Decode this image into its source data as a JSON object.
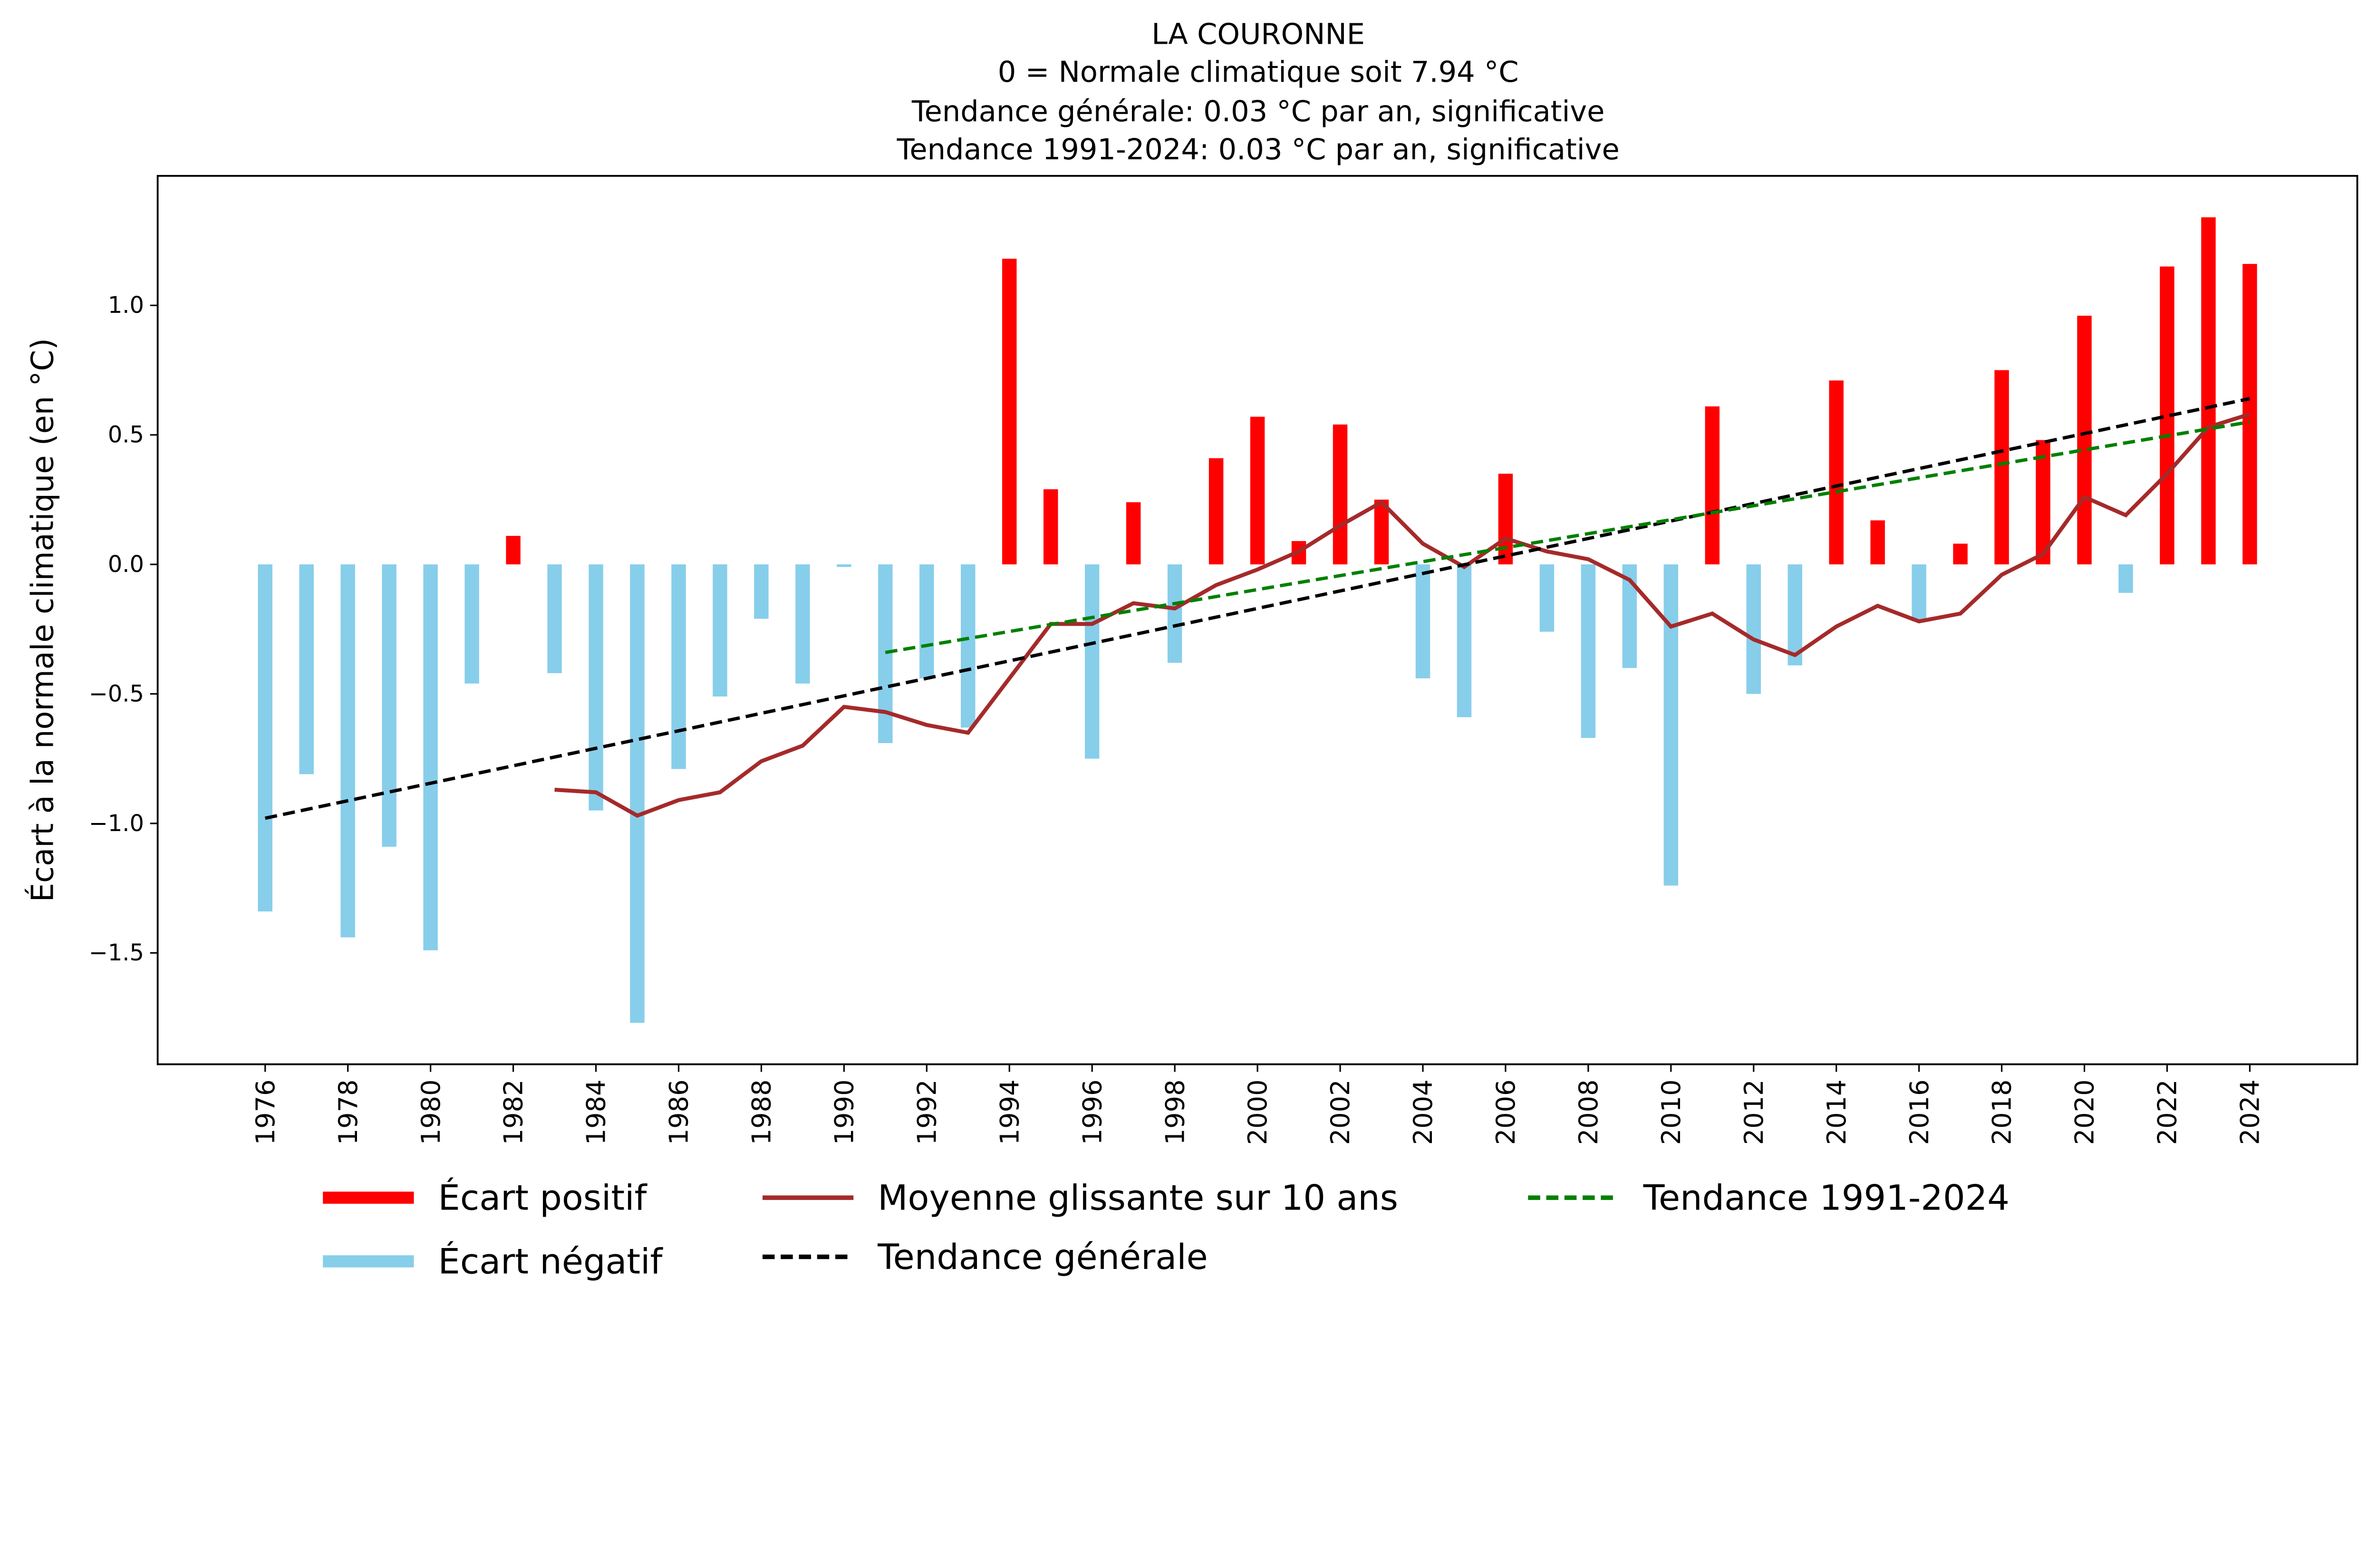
{
  "chart_data": {
    "type": "bar",
    "title_lines": [
      "LA COURONNE",
      "0 = Normale climatique soit 7.94 °C",
      "Tendance générale: 0.03 °C par an, significative",
      "Tendance 1991-2024: 0.03 °C par an, significative"
    ],
    "xlabel": "",
    "ylabel": "Écart à la normale climatique (en °C)",
    "xlim": [
      1973.4,
      2026.6
    ],
    "ylim": [
      -1.93,
      1.5
    ],
    "yticks": [
      -1.5,
      -1.0,
      -0.5,
      0.0,
      0.5,
      1.0
    ],
    "ytick_labels": [
      "−1.5",
      "−1.0",
      "−0.5",
      "0.0",
      "0.5",
      "1.0"
    ],
    "xticks": [
      1976,
      1978,
      1980,
      1982,
      1984,
      1986,
      1988,
      1990,
      1992,
      1994,
      1996,
      1998,
      2000,
      2002,
      2004,
      2006,
      2008,
      2010,
      2012,
      2014,
      2016,
      2018,
      2020,
      2022,
      2024
    ],
    "grid": false,
    "legend_placement": "bottom",
    "colors": {
      "positive": "#ff0000",
      "negative": "#87ceeb",
      "rolling": "#a52a2a",
      "trend_all": "#000000",
      "trend_recent": "#008000"
    },
    "years": [
      1976,
      1977,
      1978,
      1979,
      1980,
      1981,
      1982,
      1983,
      1984,
      1985,
      1986,
      1987,
      1988,
      1989,
      1990,
      1991,
      1992,
      1993,
      1994,
      1995,
      1996,
      1997,
      1998,
      1999,
      2000,
      2001,
      2002,
      2003,
      2004,
      2005,
      2006,
      2007,
      2008,
      2009,
      2010,
      2011,
      2012,
      2013,
      2014,
      2015,
      2016,
      2017,
      2018,
      2019,
      2020,
      2021,
      2022,
      2023,
      2024
    ],
    "anomalies": [
      -1.34,
      -0.81,
      -1.44,
      -1.09,
      -1.49,
      -0.46,
      0.11,
      -0.42,
      -0.95,
      -1.77,
      -0.79,
      -0.51,
      -0.21,
      -0.46,
      -0.01,
      -0.69,
      -0.44,
      -0.63,
      1.18,
      0.29,
      -0.75,
      0.24,
      -0.38,
      0.41,
      0.57,
      0.09,
      0.54,
      0.25,
      -0.44,
      -0.59,
      0.35,
      -0.26,
      -0.67,
      -0.4,
      -1.24,
      0.61,
      -0.5,
      -0.39,
      0.71,
      0.17,
      -0.22,
      0.08,
      0.75,
      0.48,
      0.96,
      -0.11,
      1.15,
      1.34,
      1.16
    ],
    "rolling_mean": {
      "years": [
        1983,
        1984,
        1985,
        1986,
        1987,
        1988,
        1989,
        1990,
        1991,
        1992,
        1993,
        1994,
        1995,
        1996,
        1997,
        1998,
        1999,
        2000,
        2001,
        2002,
        2003,
        2004,
        2005,
        2006,
        2007,
        2008,
        2009,
        2010,
        2011,
        2012,
        2013,
        2014,
        2015,
        2016,
        2017,
        2018,
        2019,
        2020,
        2021,
        2022,
        2023,
        2024
      ],
      "values": [
        -0.87,
        -0.88,
        -0.97,
        -0.91,
        -0.88,
        -0.76,
        -0.7,
        -0.55,
        -0.57,
        -0.62,
        -0.65,
        -0.44,
        -0.23,
        -0.23,
        -0.15,
        -0.17,
        -0.08,
        -0.02,
        0.05,
        0.15,
        0.24,
        0.08,
        -0.01,
        0.1,
        0.05,
        0.02,
        -0.06,
        -0.24,
        -0.19,
        -0.29,
        -0.35,
        -0.24,
        -0.16,
        -0.22,
        -0.19,
        -0.04,
        0.04,
        0.26,
        0.19,
        0.35,
        0.53,
        0.58
      ]
    },
    "trend_all": {
      "x": [
        1976,
        2024
      ],
      "y": [
        -0.98,
        0.64
      ]
    },
    "trend_recent": {
      "x": [
        1991,
        2024
      ],
      "y": [
        -0.34,
        0.55
      ]
    },
    "legend": [
      {
        "label": "Écart positif",
        "kind": "bar-positive"
      },
      {
        "label": "Écart négatif",
        "kind": "bar-negative"
      },
      {
        "label": "Moyenne glissante sur 10 ans",
        "kind": "rolling"
      },
      {
        "label": "Tendance générale",
        "kind": "trend-all"
      },
      {
        "label": "Tendance 1991-2024",
        "kind": "trend-recent"
      }
    ]
  }
}
